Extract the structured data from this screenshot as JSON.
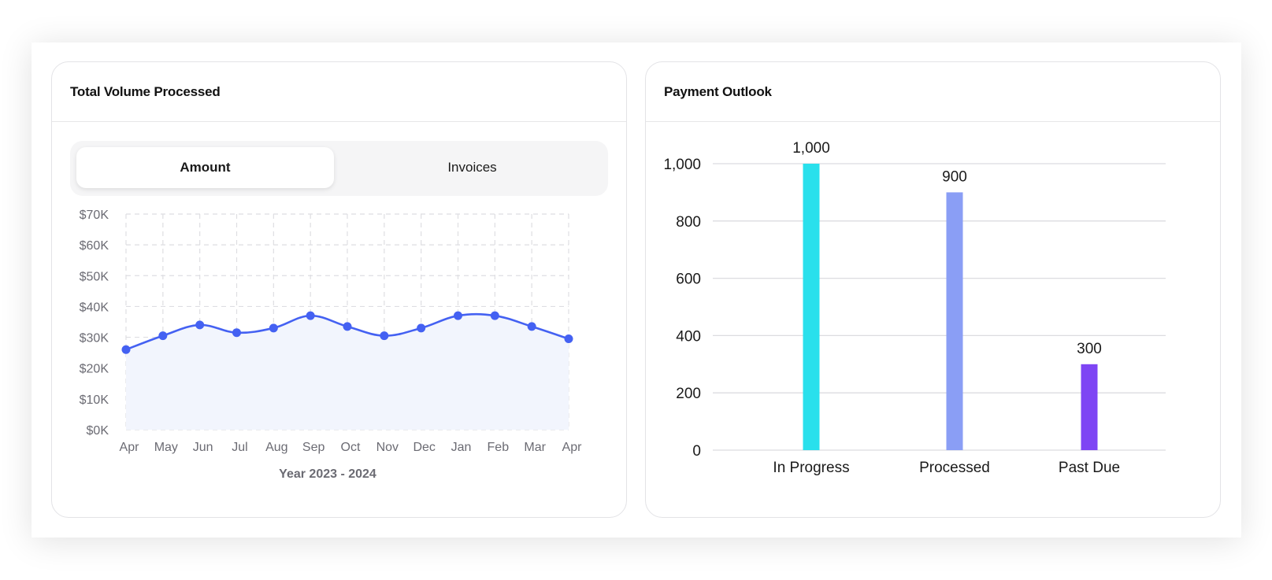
{
  "left_card": {
    "title": "Total Volume Processed",
    "tabs": [
      {
        "label": "Amount",
        "active": true
      },
      {
        "label": "Invoices",
        "active": false
      }
    ]
  },
  "right_card": {
    "title": "Payment Outlook"
  },
  "colors": {
    "line": "#4461f2",
    "area": "#f2f5fd",
    "bar_in_progress": "#29e0ec",
    "bar_processed": "#8a9ef5",
    "bar_past_due": "#7e45f4"
  },
  "chart_data": [
    {
      "type": "area",
      "title": "",
      "xlabel": "Year 2023 - 2024",
      "ylabel": "",
      "categories": [
        "Apr",
        "May",
        "Jun",
        "Jul",
        "Aug",
        "Sep",
        "Oct",
        "Nov",
        "Dec",
        "Jan",
        "Feb",
        "Mar",
        "Apr"
      ],
      "values": [
        26000,
        30500,
        34000,
        31500,
        33000,
        37000,
        33500,
        30500,
        33000,
        37000,
        37000,
        33500,
        29500
      ],
      "ylim": [
        0,
        70000
      ],
      "yticks": [
        0,
        10000,
        20000,
        30000,
        40000,
        50000,
        60000,
        70000
      ],
      "ytick_labels": [
        "$0K",
        "$10K",
        "$20K",
        "$30K",
        "$40K",
        "$50K",
        "$60K",
        "$70K"
      ],
      "grid": "dashed"
    },
    {
      "type": "bar",
      "title": "",
      "xlabel": "",
      "ylabel": "",
      "categories": [
        "In Progress",
        "Processed",
        "Past Due"
      ],
      "values": [
        1000,
        900,
        300
      ],
      "value_labels": [
        "1,000",
        "900",
        "300"
      ],
      "ylim": [
        0,
        1000
      ],
      "yticks": [
        0,
        200,
        400,
        600,
        800,
        1000
      ],
      "ytick_labels": [
        "0",
        "200",
        "400",
        "600",
        "800",
        "1,000"
      ],
      "grid": true
    }
  ]
}
